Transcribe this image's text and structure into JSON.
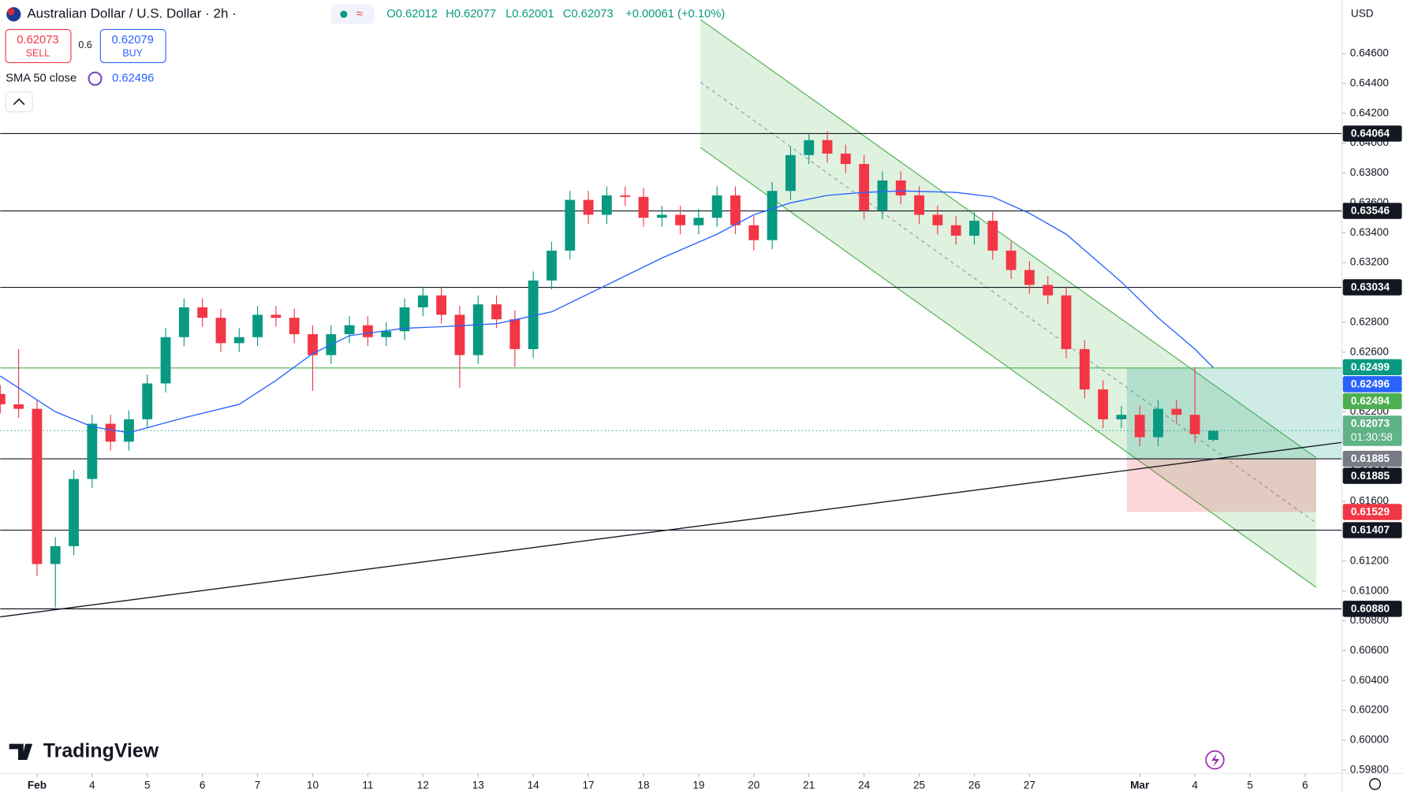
{
  "header": {
    "symbol": "Australian Dollar / U.S. Dollar · 2h ·",
    "ohlc": [
      "O0.62012",
      "H0.62077",
      "L0.62001",
      "C0.62073",
      "+0.00061 (+0.10%)"
    ],
    "sell_price": "0.62073",
    "sell_label": "SELL",
    "spread": "0.6",
    "buy_price": "0.62079",
    "buy_label": "BUY",
    "indicator": "SMA 50 close",
    "indicator_value": "0.62496",
    "currency": "USD",
    "logo": "TradingView"
  },
  "chart_data": {
    "type": "candlestick",
    "up_color": "#089981",
    "down_color": "#f23645",
    "candles": [
      [
        0.6232,
        0.6238,
        0.6219,
        0.6225
      ],
      [
        0.6225,
        0.6262,
        0.6216,
        0.6222
      ],
      [
        0.6222,
        0.6228,
        0.611,
        0.6118
      ],
      [
        0.6118,
        0.6136,
        0.6089,
        0.613
      ],
      [
        0.613,
        0.6181,
        0.6124,
        0.6175
      ],
      [
        0.6175,
        0.6218,
        0.6169,
        0.6212
      ],
      [
        0.6212,
        0.6218,
        0.6194,
        0.62
      ],
      [
        0.62,
        0.6221,
        0.6194,
        0.6215
      ],
      [
        0.6215,
        0.6245,
        0.6209,
        0.6239
      ],
      [
        0.6239,
        0.6276,
        0.6233,
        0.627
      ],
      [
        0.627,
        0.6296,
        0.6264,
        0.629
      ],
      [
        0.629,
        0.6296,
        0.6277,
        0.6283
      ],
      [
        0.6283,
        0.6289,
        0.626,
        0.6266
      ],
      [
        0.6266,
        0.6276,
        0.626,
        0.627
      ],
      [
        0.627,
        0.6291,
        0.6264,
        0.6285
      ],
      [
        0.6285,
        0.6291,
        0.6277,
        0.6283
      ],
      [
        0.6283,
        0.6289,
        0.6266,
        0.6272
      ],
      [
        0.6272,
        0.6278,
        0.6234,
        0.6258
      ],
      [
        0.6258,
        0.6278,
        0.6252,
        0.6272
      ],
      [
        0.6272,
        0.6284,
        0.6266,
        0.6278
      ],
      [
        0.6278,
        0.6284,
        0.6264,
        0.627
      ],
      [
        0.627,
        0.628,
        0.6264,
        0.6274
      ],
      [
        0.6274,
        0.6296,
        0.6268,
        0.629
      ],
      [
        0.629,
        0.6304,
        0.6284,
        0.6298
      ],
      [
        0.6298,
        0.6304,
        0.6279,
        0.6285
      ],
      [
        0.6285,
        0.6291,
        0.6236,
        0.6258
      ],
      [
        0.6258,
        0.6298,
        0.6252,
        0.6292
      ],
      [
        0.6292,
        0.6298,
        0.6276,
        0.6282
      ],
      [
        0.6282,
        0.6288,
        0.625,
        0.6262
      ],
      [
        0.6262,
        0.6314,
        0.6256,
        0.6308
      ],
      [
        0.6308,
        0.6334,
        0.6302,
        0.6328
      ],
      [
        0.6328,
        0.6368,
        0.6322,
        0.6362
      ],
      [
        0.6362,
        0.6368,
        0.6346,
        0.6352
      ],
      [
        0.6352,
        0.6371,
        0.6346,
        0.6365
      ],
      [
        0.6365,
        0.6371,
        0.6358,
        0.6364
      ],
      [
        0.6364,
        0.637,
        0.6344,
        0.635
      ],
      [
        0.635,
        0.6358,
        0.6344,
        0.6352
      ],
      [
        0.6352,
        0.6358,
        0.6339,
        0.6345
      ],
      [
        0.6345,
        0.6356,
        0.6339,
        0.635
      ],
      [
        0.635,
        0.6371,
        0.6344,
        0.6365
      ],
      [
        0.6365,
        0.6371,
        0.6339,
        0.6345
      ],
      [
        0.6345,
        0.6351,
        0.6328,
        0.6335
      ],
      [
        0.6335,
        0.6374,
        0.6329,
        0.6368
      ],
      [
        0.6368,
        0.6398,
        0.6362,
        0.6392
      ],
      [
        0.6392,
        0.6406,
        0.6386,
        0.6402
      ],
      [
        0.6402,
        0.6408,
        0.6387,
        0.6393
      ],
      [
        0.6393,
        0.6399,
        0.638,
        0.6386
      ],
      [
        0.6386,
        0.6392,
        0.6349,
        0.6355
      ],
      [
        0.6355,
        0.6381,
        0.6349,
        0.6375
      ],
      [
        0.6375,
        0.6381,
        0.6359,
        0.6365
      ],
      [
        0.6365,
        0.6371,
        0.6346,
        0.6352
      ],
      [
        0.6352,
        0.6358,
        0.6339,
        0.6345
      ],
      [
        0.6345,
        0.6351,
        0.6332,
        0.6338
      ],
      [
        0.6338,
        0.6354,
        0.6332,
        0.6348
      ],
      [
        0.6348,
        0.6354,
        0.6322,
        0.6328
      ],
      [
        0.6328,
        0.6334,
        0.6309,
        0.6315
      ],
      [
        0.6315,
        0.6321,
        0.6299,
        0.6305
      ],
      [
        0.6305,
        0.6311,
        0.6292,
        0.6298
      ],
      [
        0.6298,
        0.6304,
        0.6256,
        0.6262
      ],
      [
        0.6262,
        0.6268,
        0.6229,
        0.6235
      ],
      [
        0.6235,
        0.6241,
        0.6209,
        0.6215
      ],
      [
        0.6215,
        0.6224,
        0.6209,
        0.6218
      ],
      [
        0.6218,
        0.6224,
        0.6197,
        0.6203
      ],
      [
        0.6203,
        0.6228,
        0.6197,
        0.6222
      ],
      [
        0.6222,
        0.6228,
        0.6212,
        0.6218
      ],
      [
        0.6218,
        0.625,
        0.6199,
        0.6205
      ],
      [
        0.62012,
        0.62077,
        0.62001,
        0.62073
      ]
    ],
    "sma": {
      "name": "SMA 50 close",
      "color": "#2962ff",
      "x": [
        0,
        3,
        5,
        7,
        10,
        13,
        15,
        17,
        19,
        22,
        24,
        27,
        30,
        33,
        36,
        39,
        41,
        43,
        45,
        47,
        49,
        52,
        54,
        56,
        58,
        61,
        63,
        65,
        66
      ],
      "values": [
        0.6244,
        0.622,
        0.621,
        0.6206,
        0.6216,
        0.6225,
        0.6241,
        0.6259,
        0.6271,
        0.6276,
        0.6277,
        0.6279,
        0.6287,
        0.6305,
        0.6323,
        0.6339,
        0.6352,
        0.636,
        0.6365,
        0.6367,
        0.6368,
        0.6367,
        0.6364,
        0.6353,
        0.6339,
        0.6307,
        0.6283,
        0.6262,
        0.62496
      ]
    },
    "channel": {
      "x": [
        38.1,
        71.6
      ],
      "upper": [
        0.64828,
        0.61893
      ],
      "middle": [
        0.64408,
        0.61455
      ],
      "lower": [
        0.63971,
        0.61024
      ],
      "color": "#4caf50"
    },
    "trendline": {
      "x": [
        0,
        73
      ],
      "values": [
        0.60826,
        0.61995
      ]
    },
    "position": {
      "x": [
        61.3,
        71.6
      ],
      "target": 0.62494,
      "entry": 0.61885,
      "stop": 0.61529
    },
    "hlines": [
      {
        "value": 0.64064,
        "color": "#131722"
      },
      {
        "value": 0.63546,
        "color": "#131722"
      },
      {
        "value": 0.63034,
        "color": "#131722"
      },
      {
        "value": 0.62494,
        "color": "#4caf50"
      },
      {
        "value": 0.61885,
        "color": "#131722"
      },
      {
        "value": 0.61407,
        "color": "#131722"
      },
      {
        "value": 0.6088,
        "color": "#131722"
      }
    ],
    "last_price": 0.62073,
    "price_labels": [
      {
        "value": 0.64064,
        "label": "0.64064",
        "color": "#131722"
      },
      {
        "value": 0.63546,
        "label": "0.63546",
        "color": "#131722"
      },
      {
        "value": 0.63034,
        "label": "0.63034",
        "color": "#131722"
      },
      {
        "value": 0.62499,
        "label": "0.62499",
        "color": "#089981"
      },
      {
        "value": 0.62496,
        "label": "0.62496",
        "color": "#2962ff"
      },
      {
        "value": 0.62494,
        "label": "0.62494",
        "color": "#4caf50"
      },
      {
        "value": 0.62073,
        "label": "0.62073",
        "sub": "01:30:58",
        "color": "#5fb386"
      },
      {
        "value": 0.61885,
        "label": "0.61885",
        "color": "#787b86"
      },
      {
        "value": 0.61885,
        "label": "0.61885",
        "color": "#131722"
      },
      {
        "value": 0.61529,
        "label": "0.61529",
        "color": "#f23645"
      },
      {
        "value": 0.61407,
        "label": "0.61407",
        "color": "#131722"
      },
      {
        "value": 0.6088,
        "label": "0.60880",
        "color": "#131722"
      }
    ],
    "xlim": [
      0,
      73
    ],
    "xticks": [
      {
        "value": 2,
        "label": "Feb"
      },
      {
        "value": 5,
        "label": "4"
      },
      {
        "value": 8,
        "label": "5"
      },
      {
        "value": 11,
        "label": "6"
      },
      {
        "value": 14,
        "label": "7"
      },
      {
        "value": 17,
        "label": "10"
      },
      {
        "value": 20,
        "label": "11"
      },
      {
        "value": 23,
        "label": "12"
      },
      {
        "value": 26,
        "label": "13"
      },
      {
        "value": 29,
        "label": "14"
      },
      {
        "value": 32,
        "label": "17"
      },
      {
        "value": 35,
        "label": "18"
      },
      {
        "value": 38,
        "label": "19"
      },
      {
        "value": 41,
        "label": "20"
      },
      {
        "value": 44,
        "label": "21"
      },
      {
        "value": 47,
        "label": "24"
      },
      {
        "value": 50,
        "label": "25"
      },
      {
        "value": 53,
        "label": "26"
      },
      {
        "value": 56,
        "label": "27"
      },
      {
        "value": 62,
        "label": "Mar"
      },
      {
        "value": 65,
        "label": "4"
      },
      {
        "value": 68,
        "label": "5"
      },
      {
        "value": 71,
        "label": "6"
      }
    ],
    "ylim": [
      0.59778,
      0.64959
    ],
    "yticks": [
      {
        "value": 0.646,
        "label": "0.64600"
      },
      {
        "value": 0.644,
        "label": "0.64400"
      },
      {
        "value": 0.642,
        "label": "0.64200"
      },
      {
        "value": 0.64,
        "label": "0.64000"
      },
      {
        "value": 0.638,
        "label": "0.63800"
      },
      {
        "value": 0.636,
        "label": "0.63600"
      },
      {
        "value": 0.634,
        "label": "0.63400"
      },
      {
        "value": 0.632,
        "label": "0.63200"
      },
      {
        "value": 0.63,
        "label": "0.63000"
      },
      {
        "value": 0.628,
        "label": "0.62800"
      },
      {
        "value": 0.626,
        "label": "0.62600"
      },
      {
        "value": 0.624,
        "label": "0.62400"
      },
      {
        "value": 0.622,
        "label": "0.62200"
      },
      {
        "value": 0.62,
        "label": "0.62000"
      },
      {
        "value": 0.618,
        "label": "0.61800"
      },
      {
        "value": 0.616,
        "label": "0.61600"
      },
      {
        "value": 0.614,
        "label": "0.61400"
      },
      {
        "value": 0.612,
        "label": "0.61200"
      },
      {
        "value": 0.61,
        "label": "0.61000"
      },
      {
        "value": 0.608,
        "label": "0.60800"
      },
      {
        "value": 0.606,
        "label": "0.60600"
      },
      {
        "value": 0.604,
        "label": "0.60400"
      },
      {
        "value": 0.602,
        "label": "0.60200"
      },
      {
        "value": 0.6,
        "label": "0.60000"
      },
      {
        "value": 0.598,
        "label": "0.59800"
      }
    ]
  }
}
